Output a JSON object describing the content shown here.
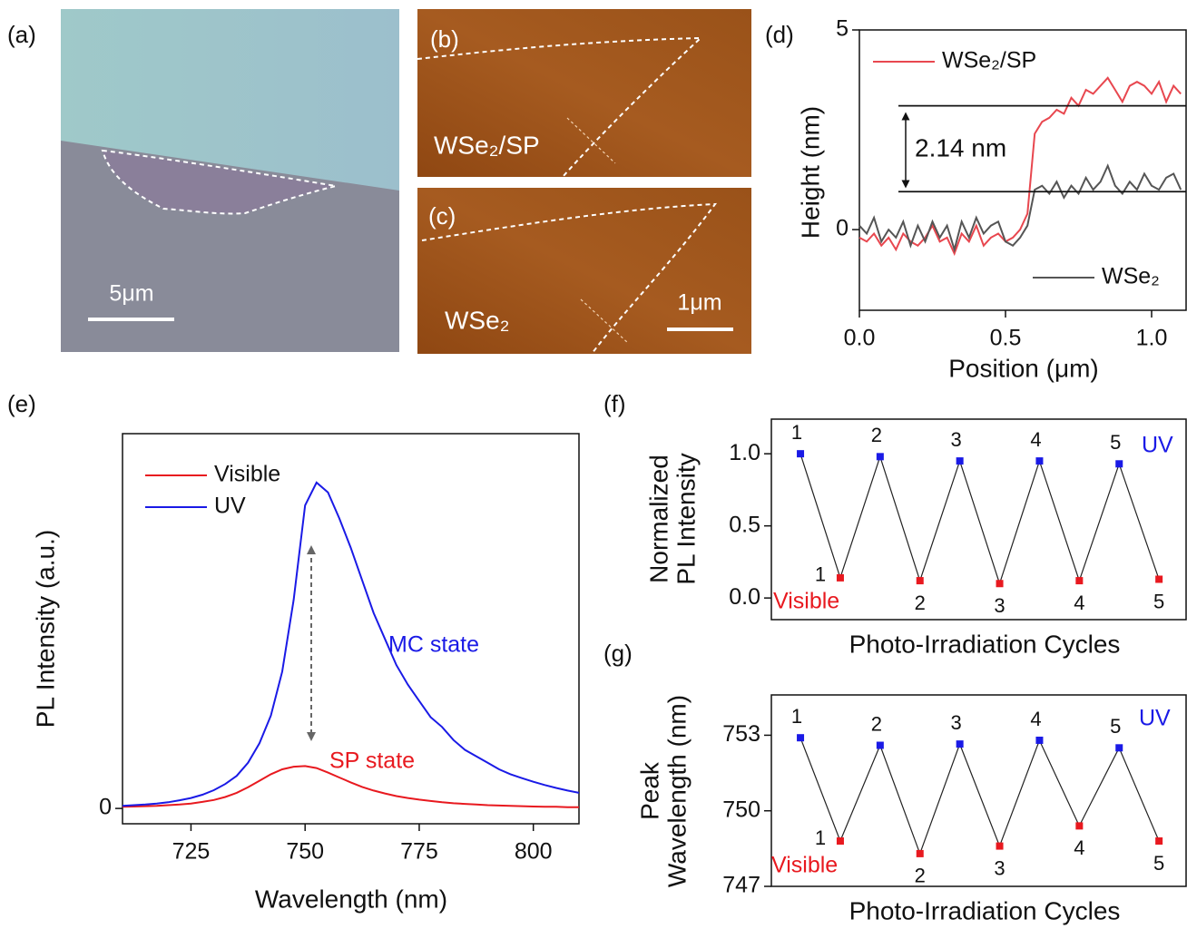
{
  "images": [
    {
      "label": "(a)",
      "scale_bar": "5μm"
    },
    {
      "label": "(b)",
      "annotation": "WSe₂/SP"
    },
    {
      "label": "(c)",
      "annotation": "WSe₂",
      "scale_bar": "1μm"
    }
  ],
  "chart_data": [
    {
      "type": "line",
      "panel_label": "(d)",
      "xlabel": "Position (μm)",
      "ylabel": "Height (nm)",
      "x": [
        0,
        0.025,
        0.05,
        0.075,
        0.1,
        0.125,
        0.15,
        0.175,
        0.2,
        0.225,
        0.25,
        0.275,
        0.3,
        0.325,
        0.35,
        0.375,
        0.4,
        0.425,
        0.45,
        0.475,
        0.5,
        0.525,
        0.55,
        0.575,
        0.6,
        0.625,
        0.65,
        0.675,
        0.7,
        0.725,
        0.75,
        0.775,
        0.8,
        0.825,
        0.85,
        0.875,
        0.9,
        0.925,
        0.95,
        0.975,
        1,
        1.025,
        1.05,
        1.075,
        1.1
      ],
      "xlim": [
        0,
        1.118
      ],
      "ylim": [
        -2.02,
        5
      ],
      "xticks": [
        {
          "value": 0,
          "label": "0.0"
        },
        {
          "value": 0.5,
          "label": "0.5"
        },
        {
          "value": 1,
          "label": "1.0"
        }
      ],
      "yticks": [
        0,
        5
      ],
      "series": [
        {
          "name": "WSe₂/SP",
          "color": "#e8474f",
          "values": [
            -0.2,
            -0.3,
            -0.1,
            -0.4,
            -0.2,
            -0.5,
            -0.1,
            -0.3,
            -0.4,
            -0.2,
            0.1,
            -0.3,
            -0.2,
            -0.6,
            -0.1,
            -0.3,
            0.1,
            -0.4,
            -0.2,
            -0.1,
            -0.3,
            -0.2,
            0,
            0.4,
            2.4,
            2.7,
            2.8,
            3.0,
            2.9,
            3.3,
            3.1,
            3.5,
            3.4,
            3.6,
            3.8,
            3.5,
            3.2,
            3.6,
            3.7,
            3.6,
            3.4,
            3.7,
            3.2,
            3.6,
            3.4
          ]
        },
        {
          "name": "WSe₂",
          "color": "#555555",
          "values": [
            0.1,
            -0.1,
            0.3,
            -0.3,
            0,
            -0.2,
            0.2,
            -0.4,
            0.1,
            -0.3,
            0.2,
            -0.2,
            0.1,
            -0.5,
            0.2,
            -0.2,
            0.3,
            -0.1,
            0.1,
            0.2,
            -0.3,
            -0.4,
            -0.2,
            0.1,
            1.0,
            1.1,
            0.9,
            1.2,
            0.8,
            1.1,
            0.9,
            1.3,
            1.0,
            1.2,
            1.6,
            1.1,
            0.9,
            1.2,
            1.0,
            1.4,
            1.1,
            1.0,
            1.3,
            1.4,
            1.0
          ]
        }
      ],
      "reference_lines": [
        3.1,
        0.95
      ],
      "annotation": "2.14 nm"
    },
    {
      "type": "line",
      "panel_label": "(e)",
      "xlabel": "Wavelength (nm)",
      "ylabel": "PL Intensity (a.u.)",
      "x": [
        710,
        712.5,
        715,
        717.5,
        720,
        722.5,
        725,
        727.5,
        730,
        732.5,
        735,
        737.5,
        740,
        742.5,
        745,
        747.5,
        750,
        752.5,
        755,
        757.5,
        760,
        762.5,
        765,
        767.5,
        770,
        772.5,
        775,
        777.5,
        780,
        782.5,
        785,
        787.5,
        790,
        792.5,
        795,
        797.5,
        800,
        802.5,
        805,
        807.5,
        810
      ],
      "xlim": [
        710,
        810
      ],
      "ylim": [
        -0.047,
        1.15
      ],
      "xticks": [
        725,
        750,
        775,
        800
      ],
      "yticks": [
        0
      ],
      "series": [
        {
          "name": "Visible",
          "color": "#e8191f",
          "values": [
            0.005,
            0.006,
            0.007,
            0.008,
            0.01,
            0.012,
            0.015,
            0.02,
            0.026,
            0.035,
            0.048,
            0.065,
            0.085,
            0.105,
            0.12,
            0.128,
            0.13,
            0.124,
            0.11,
            0.095,
            0.08,
            0.066,
            0.055,
            0.046,
            0.038,
            0.032,
            0.027,
            0.023,
            0.019,
            0.016,
            0.014,
            0.012,
            0.01,
            0.009,
            0.008,
            0.007,
            0.006,
            0.005,
            0.005,
            0.004,
            0.004
          ]
        },
        {
          "name": "UV",
          "color": "#1a1ae6",
          "values": [
            0.008,
            0.01,
            0.012,
            0.015,
            0.019,
            0.025,
            0.032,
            0.042,
            0.056,
            0.075,
            0.1,
            0.14,
            0.2,
            0.285,
            0.42,
            0.64,
            0.93,
            1.0,
            0.97,
            0.89,
            0.8,
            0.7,
            0.6,
            0.52,
            0.44,
            0.38,
            0.33,
            0.28,
            0.25,
            0.21,
            0.18,
            0.16,
            0.14,
            0.12,
            0.105,
            0.093,
            0.082,
            0.072,
            0.063,
            0.055,
            0.048
          ]
        }
      ],
      "annotations": [
        {
          "text": "MC state",
          "color": "#1a1ae6"
        },
        {
          "text": "SP state",
          "color": "#e8191f"
        }
      ]
    },
    {
      "type": "scatter",
      "panel_label": "(f)",
      "xlabel": "Photo-Irradiation Cycles",
      "ylabel": [
        "Normalized",
        "PL Intensity"
      ],
      "xlim": [
        0.27,
        10.68
      ],
      "ylim": [
        -0.15,
        1.24
      ],
      "yticks": [
        {
          "value": 0,
          "label": "0.0"
        },
        {
          "value": 0.5,
          "label": "0.5"
        },
        {
          "value": 1,
          "label": "1.0"
        }
      ],
      "series": [
        {
          "name": "UV",
          "color": "#1a1ae6",
          "x": [
            1,
            3,
            5,
            7,
            9
          ],
          "values": [
            1.0,
            0.98,
            0.95,
            0.95,
            0.93
          ],
          "labels": [
            1,
            2,
            3,
            4,
            5
          ]
        },
        {
          "name": "Visible",
          "color": "#e8191f",
          "x": [
            2,
            4,
            6,
            8,
            10
          ],
          "values": [
            0.14,
            0.12,
            0.1,
            0.12,
            0.13
          ],
          "labels": [
            1,
            2,
            3,
            4,
            5
          ]
        }
      ]
    },
    {
      "type": "scatter",
      "panel_label": "(g)",
      "xlabel": "Photo-Irradiation Cycles",
      "ylabel": [
        "Peak",
        "Wavelength (nm)"
      ],
      "xlim": [
        0.27,
        10.68
      ],
      "ylim": [
        747,
        754.6
      ],
      "yticks": [
        747,
        750,
        753
      ],
      "series": [
        {
          "name": "UV",
          "color": "#1a1ae6",
          "x": [
            1,
            3,
            5,
            7,
            9
          ],
          "values": [
            752.9,
            752.6,
            752.65,
            752.8,
            752.5
          ],
          "labels": [
            1,
            2,
            3,
            4,
            5
          ]
        },
        {
          "name": "Visible",
          "color": "#e8191f",
          "x": [
            2,
            4,
            6,
            8,
            10
          ],
          "values": [
            748.8,
            748.3,
            748.6,
            749.4,
            748.8
          ],
          "labels": [
            1,
            2,
            3,
            4,
            5
          ]
        }
      ]
    }
  ]
}
